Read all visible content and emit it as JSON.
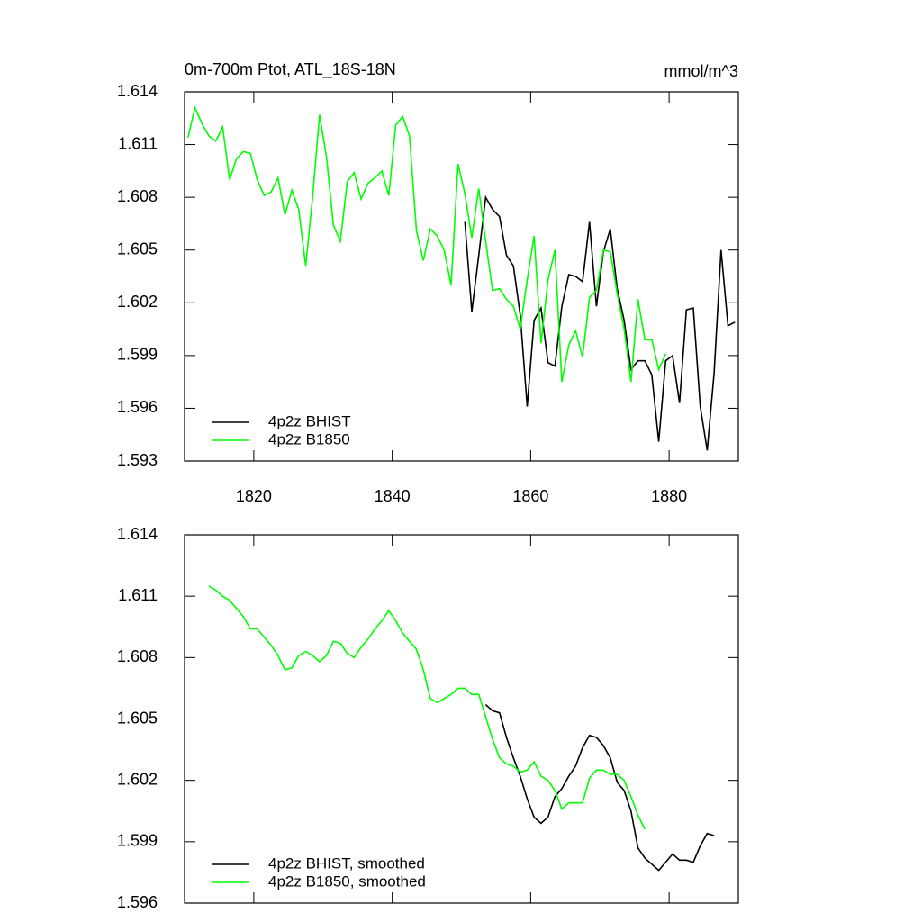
{
  "chart_data": [
    {
      "type": "line",
      "title": "0m-700m Ptot, ATL_18S-18N",
      "units": "mmol/m^3",
      "xlim": [
        1810,
        1890
      ],
      "xticks": [
        1820,
        1840,
        1860,
        1880
      ],
      "show_xtick_labels": true,
      "ylim": [
        1.593,
        1.614
      ],
      "yticks": [
        1.593,
        1.596,
        1.599,
        1.602,
        1.605,
        1.608,
        1.611,
        1.614
      ],
      "legend": "lower left",
      "series": [
        {
          "name": "4p2z BHIST",
          "color": "#000000",
          "x": [
            1850.5,
            1851.5,
            1852.5,
            1853.5,
            1854.5,
            1855.5,
            1856.5,
            1857.5,
            1858.5,
            1859.5,
            1860.5,
            1861.5,
            1862.5,
            1863.5,
            1864.5,
            1865.5,
            1866.5,
            1867.5,
            1868.5,
            1869.5,
            1870.5,
            1871.5,
            1872.5,
            1873.5,
            1874.5,
            1875.5,
            1876.5,
            1877.5,
            1878.5,
            1879.5,
            1880.5,
            1881.5,
            1882.5,
            1883.5,
            1884.5,
            1885.5,
            1886.5,
            1887.5,
            1888.5,
            1889.5
          ],
          "values": [
            1.6066,
            1.6015,
            1.6047,
            1.608,
            1.6073,
            1.6069,
            1.6047,
            1.6041,
            1.6013,
            1.5961,
            1.601,
            1.6017,
            1.5986,
            1.5984,
            1.6018,
            1.6036,
            1.6035,
            1.6032,
            1.6066,
            1.6018,
            1.6049,
            1.6062,
            1.6028,
            1.601,
            1.5982,
            1.5987,
            1.5987,
            1.5979,
            1.5941,
            1.5987,
            1.599,
            1.5963,
            1.6016,
            1.6017,
            1.5961,
            1.5936,
            1.598,
            1.605,
            1.6007,
            1.6009
          ]
        },
        {
          "name": "4p2z B1850",
          "color": "#00ff00",
          "x": [
            1810.5,
            1811.5,
            1812.5,
            1813.5,
            1814.5,
            1815.5,
            1816.5,
            1817.5,
            1818.5,
            1819.5,
            1820.5,
            1821.5,
            1822.5,
            1823.5,
            1824.5,
            1825.5,
            1826.5,
            1827.5,
            1828.5,
            1829.5,
            1830.5,
            1831.5,
            1832.5,
            1833.5,
            1834.5,
            1835.5,
            1836.5,
            1837.5,
            1838.5,
            1839.5,
            1840.5,
            1841.5,
            1842.5,
            1843.5,
            1844.5,
            1845.5,
            1846.5,
            1847.5,
            1848.5,
            1849.5,
            1850.5,
            1851.5,
            1852.5,
            1853.5,
            1854.5,
            1855.5,
            1856.5,
            1857.5,
            1858.5,
            1859.5,
            1860.5,
            1861.5,
            1862.5,
            1863.5,
            1864.5,
            1865.5,
            1866.5,
            1867.5,
            1868.5,
            1869.5,
            1870.5,
            1871.5,
            1872.5,
            1873.5,
            1874.5,
            1875.5,
            1876.5,
            1877.5,
            1878.5,
            1879.5
          ],
          "values": [
            1.6114,
            1.6131,
            1.6122,
            1.6115,
            1.6112,
            1.612,
            1.609,
            1.6102,
            1.6106,
            1.6105,
            1.609,
            1.6081,
            1.6083,
            1.6091,
            1.607,
            1.6084,
            1.6073,
            1.6041,
            1.608,
            1.6127,
            1.6103,
            1.6064,
            1.6055,
            1.6089,
            1.6094,
            1.6079,
            1.6088,
            1.6091,
            1.6095,
            1.6081,
            1.6121,
            1.6126,
            1.6115,
            1.6061,
            1.6044,
            1.6062,
            1.6058,
            1.605,
            1.603,
            1.6099,
            1.6082,
            1.6057,
            1.6085,
            1.6055,
            1.6027,
            1.6028,
            1.6022,
            1.6018,
            1.6005,
            1.6033,
            1.6058,
            1.5997,
            1.6033,
            1.605,
            1.5975,
            1.5996,
            1.6004,
            1.5989,
            1.6023,
            1.6027,
            1.605,
            1.6049,
            1.6025,
            1.6005,
            1.5975,
            1.6022,
            1.5999,
            1.5999,
            1.5982,
            1.5991
          ]
        }
      ]
    },
    {
      "type": "line",
      "xlim": [
        1810,
        1890
      ],
      "xticks": [
        1820,
        1840,
        1860,
        1880
      ],
      "show_xtick_labels": false,
      "ylim": [
        1.596,
        1.614
      ],
      "yticks": [
        1.596,
        1.599,
        1.602,
        1.605,
        1.608,
        1.611,
        1.614
      ],
      "legend": "lower left",
      "series": [
        {
          "name": "4p2z BHIST, smoothed",
          "color": "#000000",
          "x": [
            1853.5,
            1854.5,
            1855.5,
            1856.5,
            1857.5,
            1858.5,
            1859.5,
            1860.5,
            1861.5,
            1862.5,
            1863.5,
            1864.5,
            1865.5,
            1866.5,
            1867.5,
            1868.5,
            1869.5,
            1870.5,
            1871.5,
            1872.5,
            1873.5,
            1874.5,
            1875.5,
            1876.5,
            1877.5,
            1878.5,
            1879.5,
            1880.5,
            1881.5,
            1882.5,
            1883.5,
            1884.5,
            1885.5,
            1886.5
          ],
          "values": [
            1.6057,
            1.6054,
            1.6053,
            1.6041,
            1.6031,
            1.6022,
            1.6011,
            1.6002,
            1.5999,
            1.6002,
            1.6012,
            1.6016,
            1.6022,
            1.6027,
            1.6036,
            1.6042,
            1.6041,
            1.6037,
            1.6031,
            1.6019,
            1.6015,
            1.6005,
            1.5987,
            1.5982,
            1.5979,
            1.5976,
            1.598,
            1.5984,
            1.5981,
            1.5981,
            1.598,
            1.5988,
            1.5994,
            1.5993
          ]
        },
        {
          "name": "4p2z B1850, smoothed",
          "color": "#00ff00",
          "x": [
            1813.5,
            1814.5,
            1815.5,
            1816.5,
            1817.5,
            1818.5,
            1819.5,
            1820.5,
            1821.5,
            1822.5,
            1823.5,
            1824.5,
            1825.5,
            1826.5,
            1827.5,
            1828.5,
            1829.5,
            1830.5,
            1831.5,
            1832.5,
            1833.5,
            1834.5,
            1835.5,
            1836.5,
            1837.5,
            1838.5,
            1839.5,
            1840.5,
            1841.5,
            1842.5,
            1843.5,
            1844.5,
            1845.5,
            1846.5,
            1847.5,
            1848.5,
            1849.5,
            1850.5,
            1851.5,
            1852.5,
            1853.5,
            1854.5,
            1855.5,
            1856.5,
            1857.5,
            1858.5,
            1859.5,
            1860.5,
            1861.5,
            1862.5,
            1863.5,
            1864.5,
            1865.5,
            1866.5,
            1867.5,
            1868.5,
            1869.5,
            1870.5,
            1871.5,
            1872.5,
            1873.5,
            1874.5,
            1875.5,
            1876.5
          ],
          "values": [
            1.6115,
            1.6113,
            1.611,
            1.6108,
            1.6104,
            1.61,
            1.6094,
            1.6094,
            1.609,
            1.6086,
            1.6081,
            1.6074,
            1.6075,
            1.6081,
            1.6083,
            1.6081,
            1.6078,
            1.6081,
            1.6088,
            1.6087,
            1.6082,
            1.608,
            1.6085,
            1.6089,
            1.6094,
            1.6098,
            1.6103,
            1.6098,
            1.6092,
            1.6088,
            1.6084,
            1.6074,
            1.606,
            1.6058,
            1.606,
            1.6062,
            1.6065,
            1.6065,
            1.6062,
            1.6062,
            1.6051,
            1.604,
            1.6031,
            1.6028,
            1.6027,
            1.6024,
            1.6025,
            1.6029,
            1.6022,
            1.602,
            1.6015,
            1.6006,
            1.6009,
            1.6009,
            1.6009,
            1.6021,
            1.6025,
            1.6025,
            1.6023,
            1.6023,
            1.602,
            1.6012,
            1.6003,
            1.5996
          ]
        }
      ]
    }
  ]
}
